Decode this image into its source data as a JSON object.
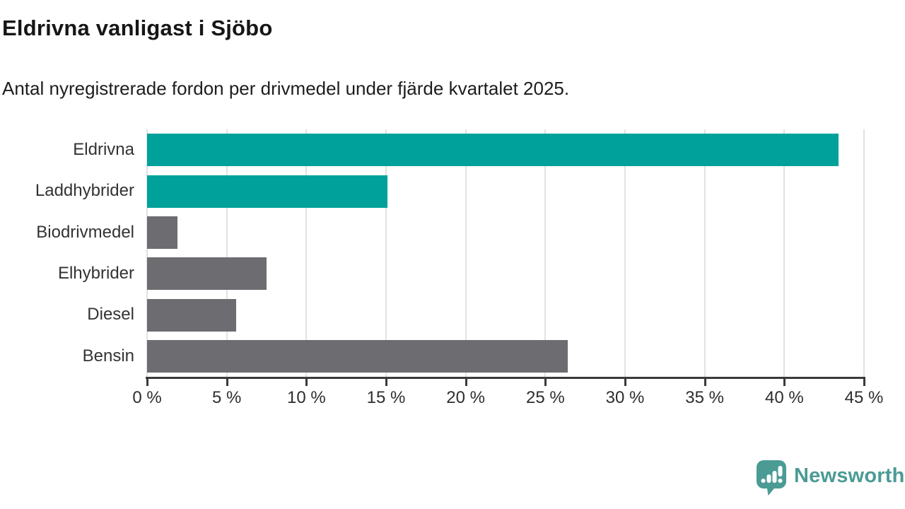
{
  "chart_data": {
    "type": "bar",
    "orientation": "horizontal",
    "title": "Eldrivna vanligast i Sjöbo",
    "subtitle": "Antal nyregistrerade fordon per drivmedel under fjärde kvartalet 2025.",
    "categories": [
      "Eldrivna",
      "Laddhybrider",
      "Biodrivmedel",
      "Elhybrider",
      "Diesel",
      "Bensin"
    ],
    "values": [
      43.4,
      15.1,
      1.9,
      7.5,
      5.6,
      26.4
    ],
    "bar_colors": [
      "#00a19a",
      "#00a19a",
      "#6c6c71",
      "#6c6c71",
      "#6c6c71",
      "#6c6c71"
    ],
    "xlabel": "",
    "ylabel": "",
    "xlim": [
      0,
      45
    ],
    "x_ticks": [
      0,
      5,
      10,
      15,
      20,
      25,
      30,
      35,
      40,
      45
    ],
    "x_tick_suffix": " %",
    "grid": "vertical",
    "accent_color": "#00a19a",
    "neutral_color": "#6c6c71",
    "gridline_color": "#e2e2e2",
    "axis_color": "#3a3a3a",
    "legend": "none"
  },
  "branding": {
    "logo_text": "Newsworthy",
    "logo_color": "#4b9b95"
  }
}
